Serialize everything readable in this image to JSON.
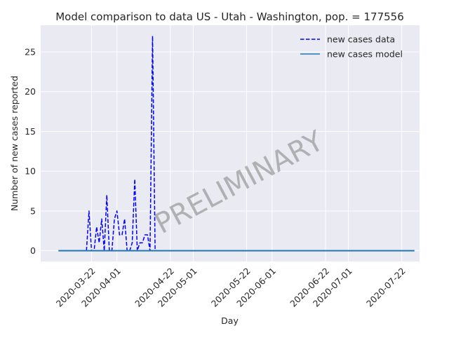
{
  "chart_data": {
    "type": "line",
    "title": "Model comparison to data US - Utah - Washington, pop. = 177556",
    "xlabel": "Day",
    "ylabel": "Number of new cases reported",
    "x_axis": "date",
    "xlim": [
      "2020-03-02",
      "2020-07-29"
    ],
    "ylim": [
      -1.35,
      28.35
    ],
    "x_ticks": [
      "2020-03-22",
      "2020-04-01",
      "2020-04-22",
      "2020-05-01",
      "2020-05-22",
      "2020-06-01",
      "2020-06-22",
      "2020-07-01",
      "2020-07-22"
    ],
    "y_ticks": [
      0,
      5,
      10,
      15,
      20,
      25
    ],
    "grid": true,
    "legend_position": "top-right",
    "watermark": "PRELIMINARY",
    "series": [
      {
        "name": "new cases data",
        "style": "dashed",
        "color": "#0000ff",
        "points": [
          [
            "2020-03-09",
            0
          ],
          [
            "2020-03-10",
            0
          ],
          [
            "2020-03-11",
            0
          ],
          [
            "2020-03-12",
            0
          ],
          [
            "2020-03-13",
            0
          ],
          [
            "2020-03-14",
            0
          ],
          [
            "2020-03-15",
            0
          ],
          [
            "2020-03-16",
            0
          ],
          [
            "2020-03-17",
            0
          ],
          [
            "2020-03-18",
            0
          ],
          [
            "2020-03-19",
            0
          ],
          [
            "2020-03-20",
            0
          ],
          [
            "2020-03-21",
            5
          ],
          [
            "2020-03-22",
            0
          ],
          [
            "2020-03-23",
            0
          ],
          [
            "2020-03-24",
            3
          ],
          [
            "2020-03-25",
            1
          ],
          [
            "2020-03-26",
            4
          ],
          [
            "2020-03-27",
            0
          ],
          [
            "2020-03-28",
            7
          ],
          [
            "2020-03-29",
            0
          ],
          [
            "2020-03-30",
            0
          ],
          [
            "2020-03-31",
            4
          ],
          [
            "2020-04-01",
            5
          ],
          [
            "2020-04-02",
            2
          ],
          [
            "2020-04-03",
            2
          ],
          [
            "2020-04-04",
            4
          ],
          [
            "2020-04-05",
            0
          ],
          [
            "2020-04-06",
            0
          ],
          [
            "2020-04-07",
            1
          ],
          [
            "2020-04-08",
            9
          ],
          [
            "2020-04-09",
            0
          ],
          [
            "2020-04-10",
            1
          ],
          [
            "2020-04-11",
            1
          ],
          [
            "2020-04-12",
            2
          ],
          [
            "2020-04-13",
            2
          ],
          [
            "2020-04-14",
            0
          ],
          [
            "2020-04-15",
            27
          ],
          [
            "2020-04-16",
            0
          ],
          [
            "2020-04-17",
            0
          ]
        ]
      },
      {
        "name": "new cases model",
        "style": "solid",
        "color": "#1f77b4",
        "points": [
          [
            "2020-03-09",
            0
          ],
          [
            "2020-07-27",
            0
          ]
        ]
      }
    ]
  }
}
